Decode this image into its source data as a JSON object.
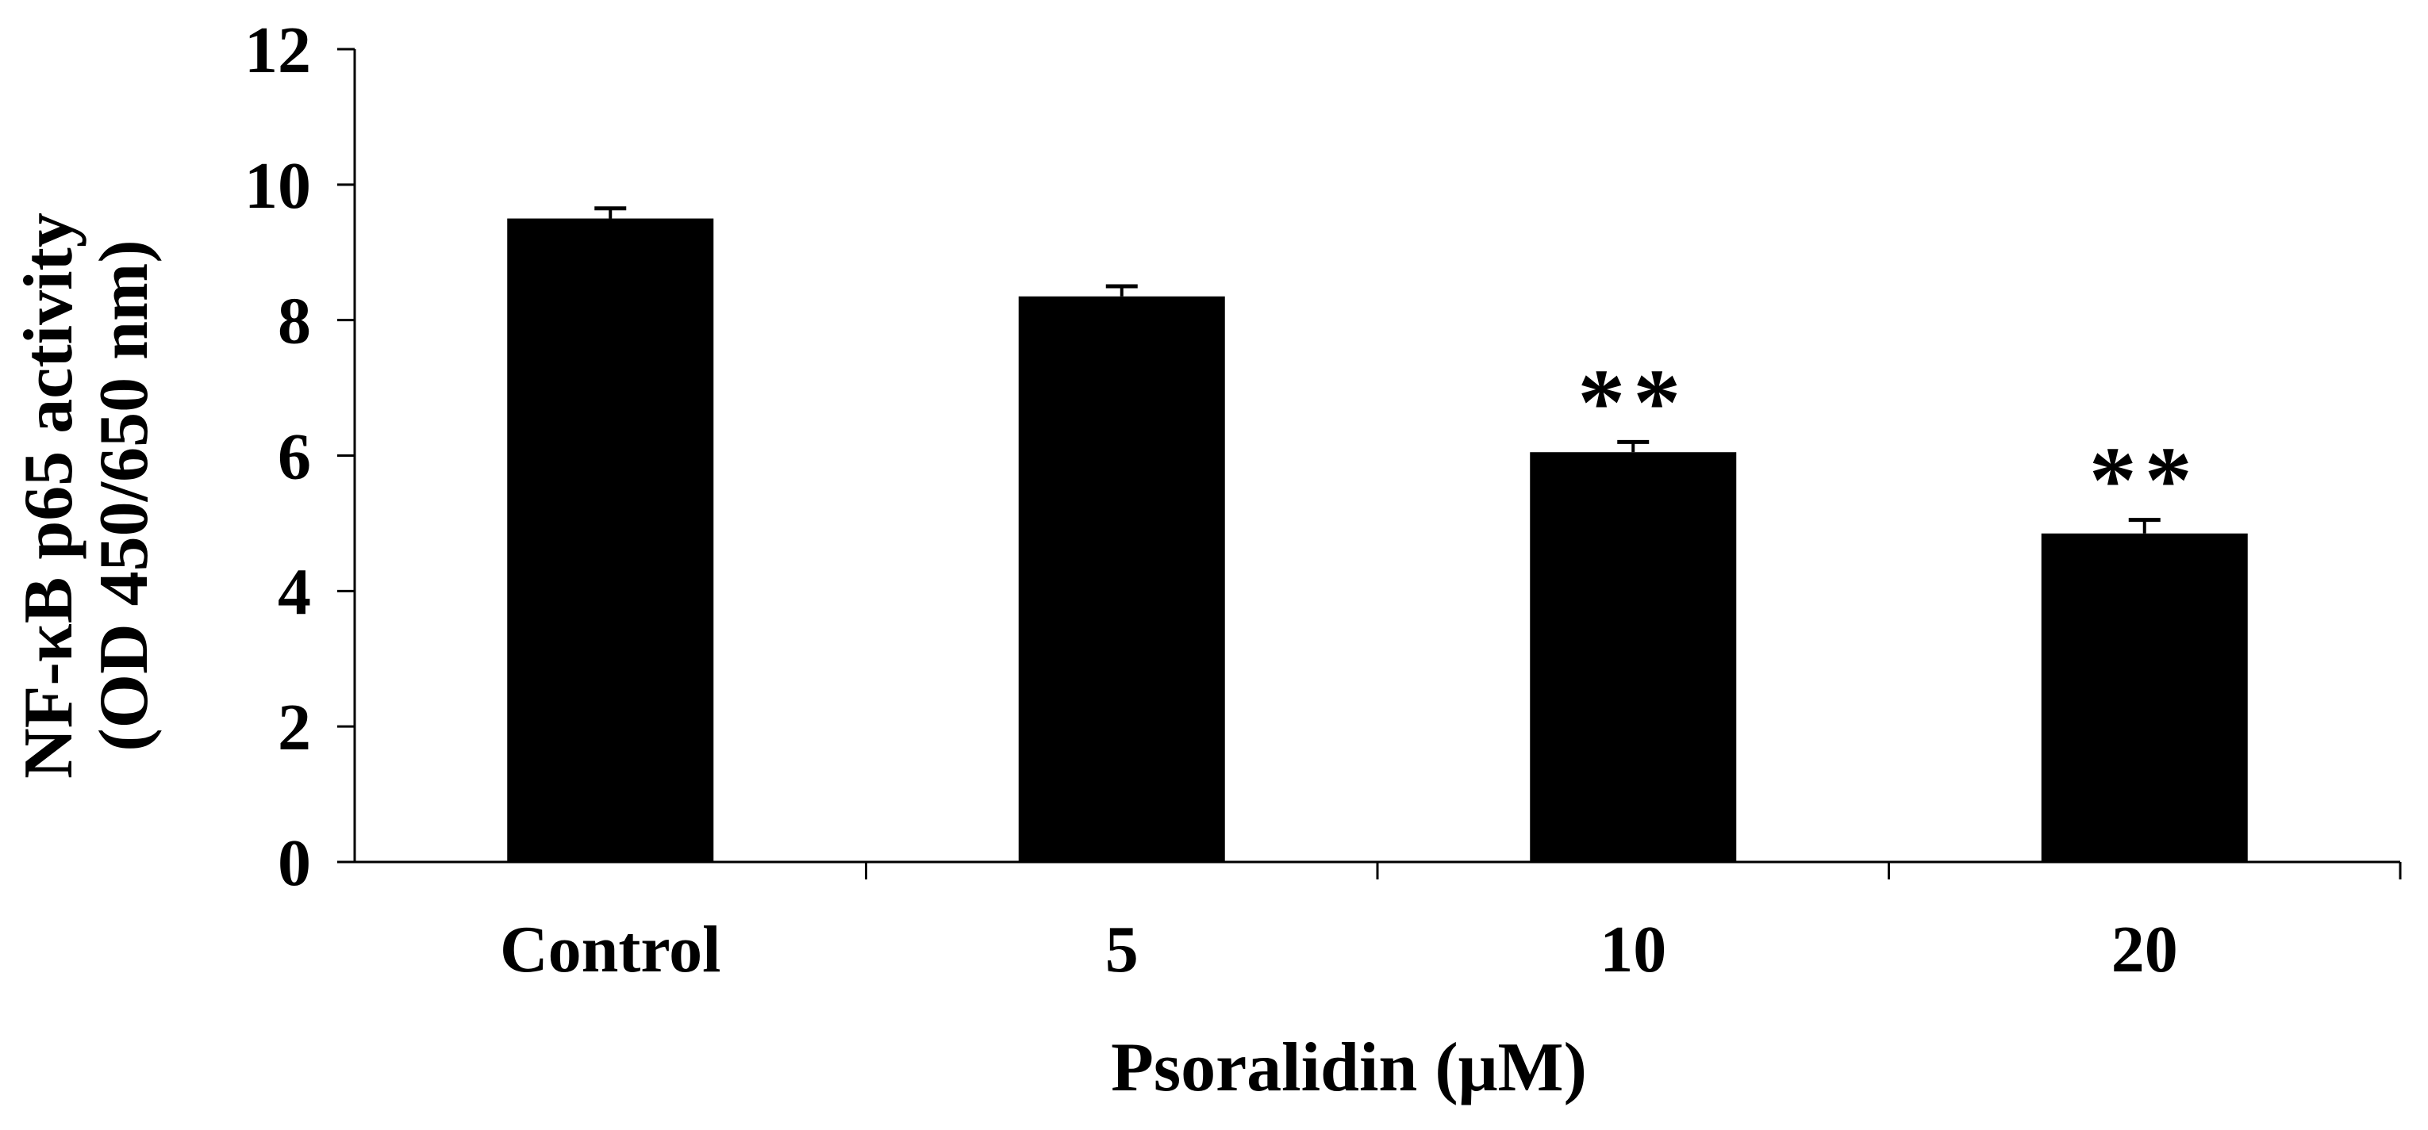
{
  "chart_data": {
    "type": "bar",
    "categories": [
      "Control",
      "5",
      "10",
      "20"
    ],
    "values": [
      9.5,
      8.35,
      6.05,
      4.85
    ],
    "errors": [
      0.15,
      0.15,
      0.15,
      0.2
    ],
    "annotations": [
      "",
      "",
      "**",
      "**"
    ],
    "title": "",
    "xlabel": "Psoralidin (μM)",
    "ylabel": [
      "NF-κB p65 activity",
      "(OD 450/650 nm)"
    ],
    "ylim": [
      0,
      12
    ],
    "yticks": [
      "0",
      "2",
      "4",
      "6",
      "8",
      "10",
      "12"
    ],
    "grid": false,
    "legend": "none",
    "colors": {
      "bar": "#000000",
      "axis": "#000000",
      "background": "#ffffff"
    }
  }
}
